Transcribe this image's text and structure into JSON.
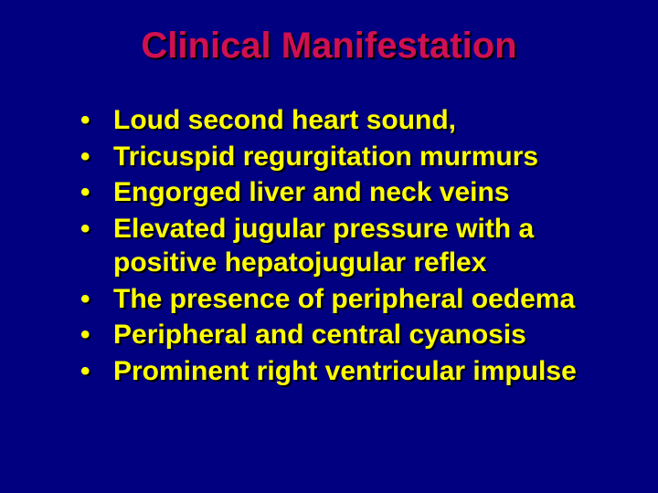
{
  "slide": {
    "title": "Clinical Manifestation",
    "background_color": "#000080",
    "title_color": "#d01050",
    "bullet_text_color": "#ffff00",
    "shadow_color": "#000000",
    "title_fontsize": 40,
    "bullet_fontsize": 30,
    "bullets": [
      "Loud second heart sound,",
      "Tricuspid regurgitation murmurs",
      "Engorged liver and neck veins",
      "Elevated jugular pressure with a positive hepatojugular reflex",
      "The presence of peripheral oedema",
      "Peripheral and central cyanosis",
      "Prominent right ventricular impulse"
    ]
  }
}
